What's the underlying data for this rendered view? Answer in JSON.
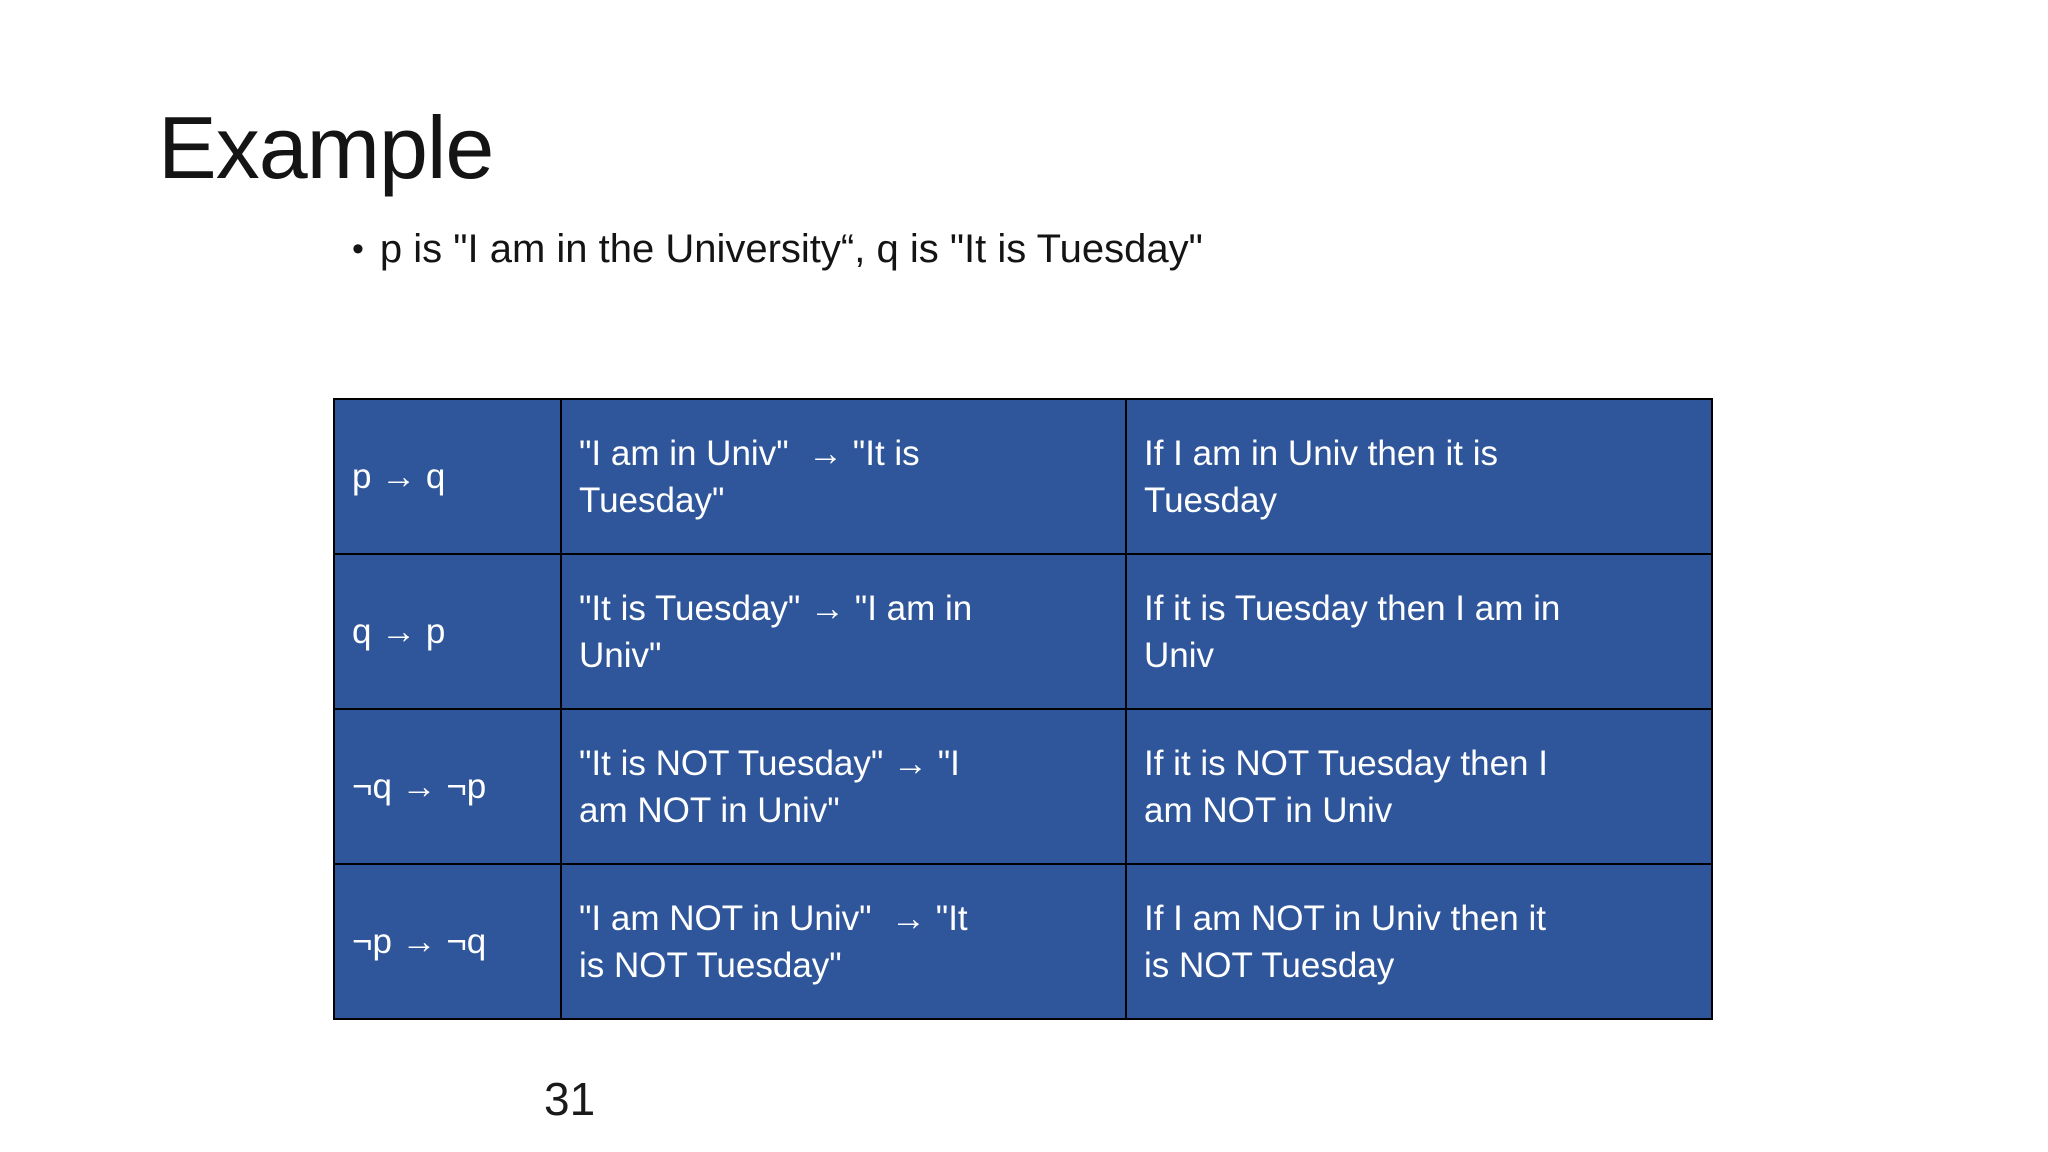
{
  "slide": {
    "title": "Example",
    "bullet": {
      "marker": "•",
      "text": "p is \"I am in the University“, q is \"It is Tuesday\""
    },
    "page_number": "31",
    "colors": {
      "cell_blue": "#2F569A",
      "table_border": "#000000",
      "cell_text": "#FFFFFF",
      "body_text": "#141414"
    },
    "table": {
      "rows": [
        {
          "formula": "p → q",
          "symbolic": "\"I am in Univ\"  → \"It is\nTuesday\"",
          "english": "If I am in Univ then it is\nTuesday"
        },
        {
          "formula": "q → p",
          "symbolic": "\"It is Tuesday\" → \"I am in\nUniv\"",
          "english": "If it is Tuesday then I am in\nUniv"
        },
        {
          "formula": "¬q → ¬p",
          "symbolic": "\"It is NOT Tuesday\" → \"I\nam NOT in Univ\"",
          "english": "If it is NOT Tuesday then I\nam NOT in Univ"
        },
        {
          "formula": "¬p → ¬q",
          "symbolic": "\"I am NOT in Univ\"  → \"It\nis NOT Tuesday\"",
          "english": "If I am NOT in Univ then it\nis NOT Tuesday"
        }
      ]
    }
  }
}
